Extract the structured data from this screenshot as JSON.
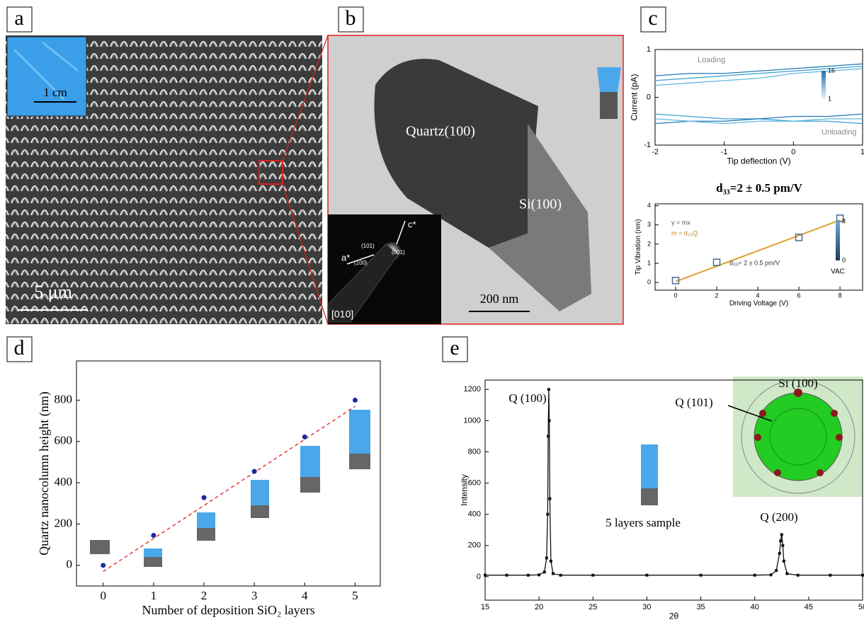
{
  "panels": {
    "labels": [
      "a",
      "b",
      "c",
      "d",
      "e"
    ],
    "a": {
      "inset_scale": "1 cm",
      "scale": "5 μm"
    },
    "b": {
      "phase_top": "Quartz(100)",
      "phase_bottom": "Si(100)",
      "scale": "200 nm",
      "zone_axis": "[010]",
      "axis_a": "a*",
      "axis_c": "c*",
      "spots": [
        "(101)",
        "(001)",
        "(100)"
      ]
    },
    "c_heading": "d₃₃=2 ± 0.5 pm/V"
  },
  "chart_data": [
    {
      "type": "line",
      "xlabel": "Tip deflection (V)",
      "ylabel": "Current (pA)",
      "x": [
        -2,
        -1.5,
        -1,
        -0.5,
        0,
        0.5,
        1
      ],
      "series": [
        {
          "color": "#3a9fd0",
          "values": [
            0.35,
            0.4,
            0.45,
            0.5,
            0.55,
            0.6,
            0.65
          ]
        },
        {
          "color": "#1f77b4",
          "values": [
            0.45,
            0.5,
            0.5,
            0.55,
            0.6,
            0.65,
            0.7
          ]
        },
        {
          "color": "#5bb8e0",
          "values": [
            0.25,
            0.3,
            0.35,
            0.4,
            0.5,
            0.55,
            0.6
          ]
        },
        {
          "color": "#3a9fd0",
          "values": [
            -0.35,
            -0.4,
            -0.45,
            -0.45,
            -0.5,
            -0.5,
            -0.55
          ]
        },
        {
          "color": "#1f77b4",
          "values": [
            -0.55,
            -0.5,
            -0.5,
            -0.45,
            -0.4,
            -0.4,
            -0.35
          ]
        },
        {
          "color": "#5bb8e0",
          "values": [
            -0.45,
            -0.5,
            -0.55,
            -0.5,
            -0.5,
            -0.45,
            -0.45
          ]
        }
      ],
      "xlim": [
        -2,
        1
      ],
      "ylim": [
        -1,
        1
      ],
      "xticks": [
        -2,
        -1,
        0,
        1
      ],
      "yticks": [
        -1,
        0,
        1
      ],
      "annotations": [
        "Loading",
        "Unloading"
      ],
      "colorbar_ticks": [
        16,
        1
      ]
    },
    {
      "type": "scatter",
      "xlabel": "Driving Voltage (V)",
      "ylabel": "Tip Vibration (nm)",
      "x": [
        0,
        2,
        6,
        8
      ],
      "values": [
        0.1,
        1.05,
        2.35,
        3.35
      ],
      "color": "#4a6a90",
      "fit": {
        "x": [
          0,
          8
        ],
        "values": [
          0.05,
          3.25
        ],
        "color": "#e0a030"
      },
      "xlim": [
        -1,
        9.1
      ],
      "ylim": [
        -0.4,
        4.1
      ],
      "xticks": [
        0,
        2,
        4,
        6,
        8
      ],
      "yticks": [
        0,
        1,
        2,
        3,
        4
      ],
      "annotations": [
        "y = mx",
        "m = d₃₃Q",
        "d₃₃= 2 ± 0.5 pm/V"
      ],
      "colorbar_ticks": [
        8,
        0
      ],
      "colorbar_label": "VAC"
    },
    {
      "type": "scatter",
      "xlabel": "Number of deposition SiO₂ layers",
      "ylabel": "Quartz nanocolumn height  (nm)",
      "x": [
        0,
        1,
        2,
        3,
        4,
        5
      ],
      "values": [
        0,
        145,
        328,
        455,
        622,
        800
      ],
      "errors": [
        5,
        12,
        6,
        10,
        10,
        5
      ],
      "color": "#1a2aa0",
      "fit": {
        "x": [
          0,
          5
        ],
        "values": [
          -30,
          770
        ],
        "color": "#e02020"
      },
      "xlim": [
        -0.53,
        5.5
      ],
      "ylim": [
        -100,
        990
      ],
      "xticks": [
        0,
        1,
        2,
        3,
        4,
        5
      ],
      "yticks": [
        0,
        200,
        400,
        600,
        800
      ]
    },
    {
      "type": "line",
      "xlabel": "2θ",
      "ylabel": "Intensity",
      "color": "#111111",
      "x": [
        15,
        17,
        19,
        20,
        20.5,
        20.7,
        20.8,
        20.85,
        20.9,
        20.95,
        21,
        21.1,
        21.3,
        22,
        25,
        30,
        35,
        40,
        41.5,
        42,
        42.3,
        42.4,
        42.5,
        42.6,
        42.7,
        43,
        44,
        47,
        50
      ],
      "series": [
        {
          "color": "#111111",
          "values": [
            10,
            10,
            10,
            12,
            30,
            120,
            400,
            900,
            1200,
            1000,
            500,
            100,
            20,
            10,
            10,
            10,
            10,
            10,
            12,
            40,
            150,
            230,
            270,
            200,
            100,
            20,
            10,
            10,
            10
          ]
        }
      ],
      "xlim": [
        15,
        50
      ],
      "ylim": [
        -150,
        1260
      ],
      "xticks": [
        15,
        20,
        25,
        30,
        35,
        40,
        45,
        50
      ],
      "yticks": [
        0,
        200,
        400,
        600,
        800,
        1000,
        1200
      ],
      "annotations": [
        "Q (100)",
        "Q (101)",
        "Si (100)",
        "5 layers sample",
        "Q (200)"
      ]
    }
  ]
}
